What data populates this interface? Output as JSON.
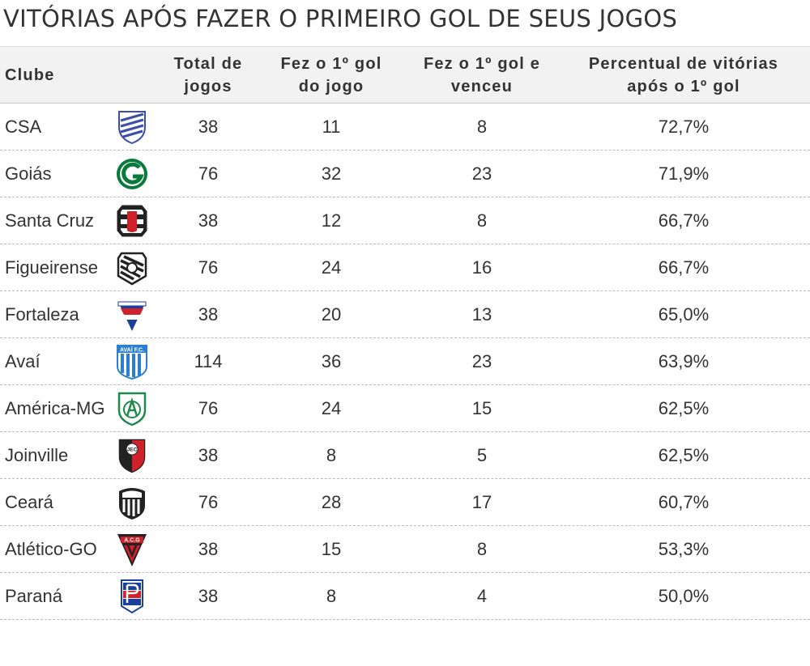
{
  "title": "VITÓRIAS APÓS FAZER O PRIMEIRO GOL DE SEUS JOGOS",
  "table": {
    "headers": {
      "club": "Clube",
      "total": "Total de jogos",
      "first_goal": "Fez o 1º gol do jogo",
      "won": "Fez o 1º gol e venceu",
      "pct": "Percentual de vitórias após o 1º gol"
    },
    "rows": [
      {
        "club": "CSA",
        "total": "38",
        "first_goal": "11",
        "won": "8",
        "pct": "72,7%",
        "crest": "csa-crest-icon"
      },
      {
        "club": "Goiás",
        "total": "76",
        "first_goal": "32",
        "won": "23",
        "pct": "71,9%",
        "crest": "goias-crest-icon"
      },
      {
        "club": "Santa Cruz",
        "total": "38",
        "first_goal": "12",
        "won": "8",
        "pct": "66,7%",
        "crest": "santa-cruz-crest-icon"
      },
      {
        "club": "Figueirense",
        "total": "76",
        "first_goal": "24",
        "won": "16",
        "pct": "66,7%",
        "crest": "figueirense-crest-icon"
      },
      {
        "club": "Fortaleza",
        "total": "38",
        "first_goal": "20",
        "won": "13",
        "pct": "65,0%",
        "crest": "fortaleza-crest-icon"
      },
      {
        "club": "Avaí",
        "total": "114",
        "first_goal": "36",
        "won": "23",
        "pct": "63,9%",
        "crest": "avai-crest-icon"
      },
      {
        "club": "América-MG",
        "total": "76",
        "first_goal": "24",
        "won": "15",
        "pct": "62,5%",
        "crest": "america-mg-crest-icon"
      },
      {
        "club": "Joinville",
        "total": "38",
        "first_goal": "8",
        "won": "5",
        "pct": "62,5%",
        "crest": "joinville-crest-icon"
      },
      {
        "club": "Ceará",
        "total": "76",
        "first_goal": "28",
        "won": "17",
        "pct": "60,7%",
        "crest": "ceara-crest-icon"
      },
      {
        "club": "Atlético-GO",
        "total": "38",
        "first_goal": "15",
        "won": "8",
        "pct": "53,3%",
        "crest": "atletico-go-crest-icon"
      },
      {
        "club": "Paraná",
        "total": "38",
        "first_goal": "8",
        "won": "4",
        "pct": "50,0%",
        "crest": "parana-crest-icon"
      }
    ]
  },
  "crest_labels": {
    "avai": "AVAÍ F.C.",
    "atletico": "A.C.G",
    "joinville": "JEC"
  },
  "colors": {
    "text": "#333333",
    "header_bg": "#f2f2f2",
    "row_border": "#bbbbbb",
    "goias_green": "#0a7a3c",
    "csa_blue": "#3b4fa6",
    "avai_blue": "#2b7fd0",
    "america_green": "#1f8a4c",
    "club_red": "#d0202a",
    "parana_blue": "#1b3f9c"
  }
}
